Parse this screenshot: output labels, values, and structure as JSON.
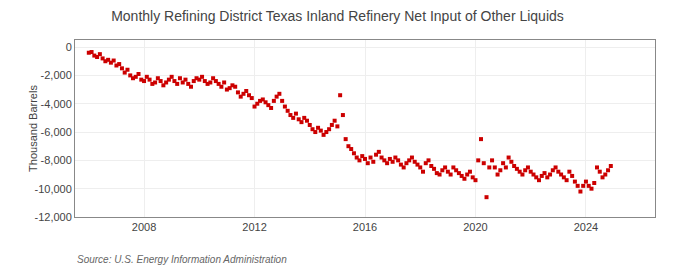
{
  "chart_data": {
    "type": "scatter",
    "title": "Monthly Refining District Texas Inland Refinery Net Input of Other Liquids",
    "y_label": "Thousand Barrels",
    "annotations": [
      "Source: U.S. Energy Information Administration"
    ],
    "color": "#cc0000",
    "marker": "square",
    "grid": true,
    "xlim": [
      2005.5,
      2026.5
    ],
    "xticks": [
      2008,
      2012,
      2016,
      2020,
      2024
    ],
    "ylim": [
      -12000,
      500
    ],
    "yticks": [
      0,
      {
        "value": -2000,
        "label": "-2,000"
      },
      {
        "value": -4000,
        "label": "-4,000"
      },
      {
        "value": -6000,
        "label": "-6,000"
      },
      {
        "value": -8000,
        "label": "-8,000"
      },
      {
        "value": -10000,
        "label": "-10,000"
      },
      {
        "value": -12000,
        "label": "-12,000"
      }
    ],
    "x": [
      2006.0,
      2006.1,
      2006.2,
      2006.3,
      2006.4,
      2006.5,
      2006.6,
      2006.7,
      2006.8,
      2006.9,
      2007.0,
      2007.1,
      2007.2,
      2007.3,
      2007.4,
      2007.5,
      2007.6,
      2007.7,
      2007.8,
      2007.9,
      2008.0,
      2008.1,
      2008.2,
      2008.3,
      2008.4,
      2008.5,
      2008.6,
      2008.7,
      2008.8,
      2008.9,
      2009.0,
      2009.1,
      2009.2,
      2009.3,
      2009.4,
      2009.5,
      2009.6,
      2009.7,
      2009.8,
      2009.9,
      2010.0,
      2010.1,
      2010.2,
      2010.3,
      2010.4,
      2010.5,
      2010.6,
      2010.7,
      2010.8,
      2010.9,
      2011.0,
      2011.1,
      2011.2,
      2011.3,
      2011.4,
      2011.5,
      2011.6,
      2011.7,
      2011.8,
      2011.9,
      2012.0,
      2012.1,
      2012.2,
      2012.3,
      2012.4,
      2012.5,
      2012.6,
      2012.7,
      2012.8,
      2012.9,
      2013.0,
      2013.1,
      2013.2,
      2013.3,
      2013.4,
      2013.5,
      2013.6,
      2013.7,
      2013.8,
      2013.9,
      2014.0,
      2014.1,
      2014.2,
      2014.3,
      2014.4,
      2014.5,
      2014.6,
      2014.7,
      2014.8,
      2014.9,
      2015.0,
      2015.1,
      2015.2,
      2015.3,
      2015.4,
      2015.5,
      2015.6,
      2015.7,
      2015.8,
      2015.9,
      2016.0,
      2016.1,
      2016.2,
      2016.3,
      2016.4,
      2016.5,
      2016.6,
      2016.7,
      2016.8,
      2016.9,
      2017.0,
      2017.1,
      2017.2,
      2017.3,
      2017.4,
      2017.5,
      2017.6,
      2017.7,
      2017.8,
      2017.9,
      2018.0,
      2018.1,
      2018.2,
      2018.3,
      2018.4,
      2018.5,
      2018.6,
      2018.7,
      2018.8,
      2018.9,
      2019.0,
      2019.1,
      2019.2,
      2019.3,
      2019.4,
      2019.5,
      2019.6,
      2019.7,
      2019.8,
      2019.9,
      2020.0,
      2020.1,
      2020.2,
      2020.3,
      2020.4,
      2020.5,
      2020.6,
      2020.7,
      2020.8,
      2020.9,
      2021.0,
      2021.1,
      2021.2,
      2021.3,
      2021.4,
      2021.5,
      2021.6,
      2021.7,
      2021.8,
      2021.9,
      2022.0,
      2022.1,
      2022.2,
      2022.3,
      2022.4,
      2022.5,
      2022.6,
      2022.7,
      2022.8,
      2022.9,
      2023.0,
      2023.1,
      2023.2,
      2023.3,
      2023.4,
      2023.5,
      2023.6,
      2023.7,
      2023.8,
      2023.9,
      2024.0,
      2024.1,
      2024.2,
      2024.3,
      2024.4,
      2024.5,
      2024.6,
      2024.7,
      2024.8,
      2024.9
    ],
    "values": [
      -400,
      -350,
      -600,
      -700,
      -500,
      -800,
      -1000,
      -900,
      -1100,
      -950,
      -1300,
      -1200,
      -1500,
      -1800,
      -1600,
      -2000,
      -2200,
      -2100,
      -1900,
      -2300,
      -2400,
      -2100,
      -2300,
      -2600,
      -2500,
      -2200,
      -2400,
      -2700,
      -2500,
      -2300,
      -2100,
      -2400,
      -2600,
      -2200,
      -2500,
      -2300,
      -2600,
      -2800,
      -2400,
      -2200,
      -2300,
      -2100,
      -2400,
      -2600,
      -2500,
      -2200,
      -2400,
      -2600,
      -2800,
      -2500,
      -3000,
      -2900,
      -2700,
      -2800,
      -3200,
      -3500,
      -3300,
      -3100,
      -3400,
      -3600,
      -4200,
      -4000,
      -3800,
      -3700,
      -3900,
      -4100,
      -4300,
      -3800,
      -3500,
      -3300,
      -3800,
      -4200,
      -4500,
      -4800,
      -5000,
      -4700,
      -5100,
      -5300,
      -5000,
      -5200,
      -5500,
      -5800,
      -6000,
      -5700,
      -5900,
      -6200,
      -6000,
      -5800,
      -5500,
      -5200,
      -5600,
      -3400,
      -4800,
      -6500,
      -7000,
      -7200,
      -7500,
      -7800,
      -8000,
      -7700,
      -7900,
      -8200,
      -7800,
      -8100,
      -7600,
      -7400,
      -7800,
      -8000,
      -8200,
      -7900,
      -8100,
      -7800,
      -8000,
      -8300,
      -8500,
      -8200,
      -8000,
      -7800,
      -8100,
      -8300,
      -8500,
      -8800,
      -8200,
      -8000,
      -8400,
      -8600,
      -8900,
      -9000,
      -8700,
      -8500,
      -8800,
      -9000,
      -8500,
      -8700,
      -8900,
      -9100,
      -9300,
      -9000,
      -8800,
      -9200,
      -9400,
      -8000,
      -6500,
      -8200,
      -10600,
      -8500,
      -8000,
      -8500,
      -9000,
      -8700,
      -8200,
      -8500,
      -7800,
      -8100,
      -8400,
      -8600,
      -8800,
      -9000,
      -8700,
      -8500,
      -8800,
      -9000,
      -9200,
      -9400,
      -9100,
      -8900,
      -9200,
      -9000,
      -8700,
      -8500,
      -8800,
      -9000,
      -9200,
      -9400,
      -8800,
      -9100,
      -9500,
      -9800,
      -10200,
      -9800,
      -9500,
      -9800,
      -10000,
      -9600,
      -8500,
      -8800,
      -9200,
      -9000,
      -8700,
      -8400
    ]
  }
}
